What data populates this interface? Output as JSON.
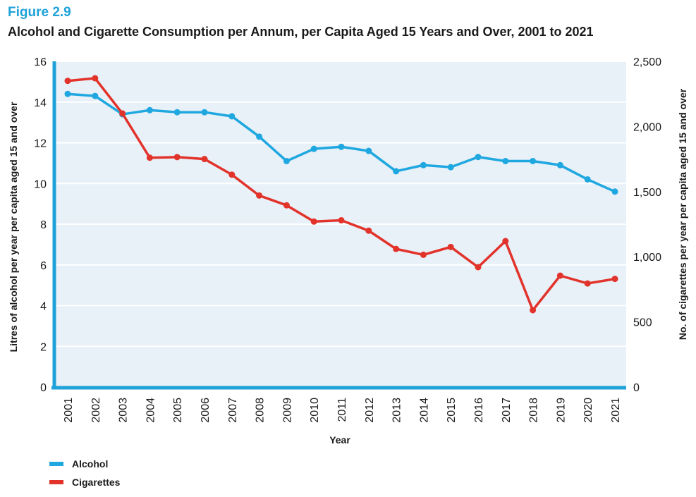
{
  "figure": {
    "label": "Figure 2.9",
    "title": "Alcohol and Cigarette Consumption per Annum, per Capita Aged 15 Years and Over, 2001 to 2021"
  },
  "colors": {
    "alcohol": "#1fa8e0",
    "cigarettes": "#e2332b",
    "plot_background": "#e8f0f8",
    "axis": "#1fa2d8",
    "grid": "#ffffff"
  },
  "chart_data": {
    "type": "line",
    "x": [
      "2001",
      "2002",
      "2003",
      "2004",
      "2005",
      "2006",
      "2007",
      "2008",
      "2009",
      "2010",
      "2011",
      "2012",
      "2013",
      "2014",
      "2015",
      "2016",
      "2017",
      "2018",
      "2019",
      "2020",
      "2021"
    ],
    "xlabel": "Year",
    "ylabel_left": "Litres of alcohol per year per capita aged 15 and over",
    "ylabel_right": "No. of cigarettes per year per capita aged 15 and over",
    "ylim_left": [
      0,
      16
    ],
    "ylim_right": [
      0,
      2500
    ],
    "yticks_left": [
      "0",
      "2",
      "4",
      "6",
      "8",
      "10",
      "12",
      "14",
      "16"
    ],
    "yticks_right": [
      "0",
      "500",
      "1,000",
      "1,500",
      "2,000",
      "2,500"
    ],
    "grid": true,
    "legend_position": "bottom-left",
    "series": [
      {
        "name": "Alcohol",
        "axis": "left",
        "values": [
          14.4,
          14.3,
          13.4,
          13.6,
          13.5,
          13.5,
          13.3,
          12.3,
          11.1,
          11.7,
          11.8,
          11.6,
          10.6,
          10.9,
          10.8,
          11.3,
          11.1,
          11.1,
          10.9,
          10.2,
          9.6
        ]
      },
      {
        "name": "Cigarettes",
        "axis": "right",
        "values": [
          2350,
          2370,
          2100,
          1760,
          1765,
          1750,
          1630,
          1470,
          1395,
          1270,
          1280,
          1200,
          1060,
          1015,
          1075,
          920,
          1120,
          590,
          855,
          795,
          830
        ]
      }
    ]
  }
}
